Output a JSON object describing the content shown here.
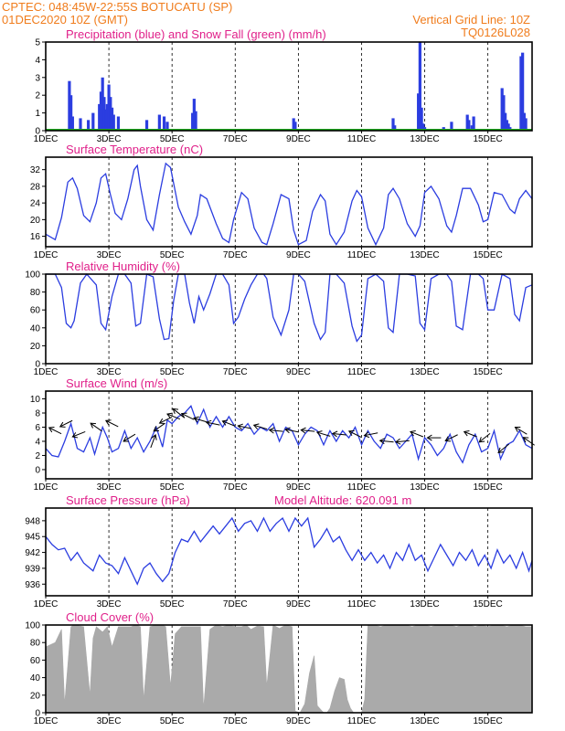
{
  "header": {
    "org_location": "CPTEC:  048:45W-22:55S  BOTUCATU (SP)",
    "run": "01DEC2020 10Z (GMT)",
    "grid_note": "Vertical Grid Line: 10Z",
    "code": "TQ0126L028"
  },
  "colors": {
    "header": "#f07c1c",
    "title": "#e0208a",
    "series": "#2b3de0",
    "precip": "#2b3de0",
    "snow": "#1fa81f",
    "cloud": "#aaaaaa",
    "arrow": "#000000"
  },
  "chart_data": [
    {
      "type": "bar",
      "title": "Precipitation (blue) and Snow Fall (green) (mm/h)",
      "x_tick_labels": [
        "1DEC",
        "3DEC",
        "5DEC",
        "7DEC",
        "9DEC",
        "11DEC",
        "13DEC",
        "15DEC"
      ],
      "xlim_days": [
        1,
        16.4
      ],
      "ylim": [
        0,
        5
      ],
      "y_ticks": [
        0,
        1,
        2,
        3,
        4,
        5
      ],
      "series": [
        {
          "key": "precip",
          "x_day": [
            1.75,
            1.8,
            1.85,
            2.1,
            2.35,
            2.5,
            2.7,
            2.75,
            2.8,
            2.85,
            2.9,
            2.95,
            3.0,
            3.05,
            3.1,
            3.15,
            3.3,
            4.2,
            4.6,
            4.75,
            4.85,
            5.65,
            5.7,
            5.75,
            8.85,
            8.9,
            12.0,
            12.05,
            12.8,
            12.85,
            12.9,
            12.95,
            13.0,
            13.6,
            13.85,
            14.35,
            14.4,
            14.5,
            14.55,
            15.45,
            15.5,
            15.55,
            15.6,
            15.65,
            15.7,
            16.05,
            16.1,
            16.15,
            16.2
          ],
          "values": [
            2.8,
            2.0,
            0.8,
            0.7,
            0.6,
            1.0,
            1.5,
            2.2,
            3.0,
            1.9,
            1.2,
            1.5,
            2.6,
            1.9,
            1.3,
            0.9,
            0.8,
            0.6,
            0.9,
            0.8,
            0.5,
            1.0,
            1.8,
            1.1,
            0.7,
            0.5,
            0.7,
            0.3,
            2.1,
            5.0,
            1.3,
            0.4,
            0.2,
            0.2,
            0.5,
            0.9,
            0.6,
            0.3,
            0.8,
            2.4,
            2.0,
            1.0,
            0.6,
            0.4,
            0.2,
            4.2,
            4.4,
            1.0,
            0.7
          ]
        },
        {
          "key": "snow",
          "values_all": 0
        }
      ]
    },
    {
      "type": "line",
      "title": "Surface Temperature (nC)",
      "x_tick_labels": [
        "1DEC",
        "3DEC",
        "5DEC",
        "7DEC",
        "9DEC",
        "11DEC",
        "13DEC",
        "15DEC"
      ],
      "xlim_days": [
        1,
        16.4
      ],
      "ylim": [
        13.5,
        35
      ],
      "y_ticks": [
        16,
        20,
        24,
        28,
        32
      ],
      "x_day": [
        1.0,
        1.3,
        1.5,
        1.7,
        1.85,
        2.0,
        2.2,
        2.4,
        2.6,
        2.75,
        2.9,
        3.05,
        3.2,
        3.4,
        3.6,
        3.8,
        3.9,
        4.0,
        4.2,
        4.4,
        4.6,
        4.8,
        4.95,
        5.2,
        5.4,
        5.6,
        5.8,
        5.9,
        6.1,
        6.4,
        6.6,
        6.8,
        6.95,
        7.2,
        7.4,
        7.6,
        7.85,
        8.0,
        8.2,
        8.45,
        8.7,
        8.85,
        9.0,
        9.25,
        9.45,
        9.7,
        9.85,
        10.0,
        10.2,
        10.45,
        10.7,
        10.85,
        11.0,
        11.2,
        11.45,
        11.7,
        11.85,
        12.0,
        12.2,
        12.45,
        12.7,
        12.85,
        13.0,
        13.2,
        13.45,
        13.7,
        13.85,
        14.0,
        14.2,
        14.45,
        14.7,
        14.85,
        15.0,
        15.2,
        15.45,
        15.7,
        15.85,
        16.0,
        16.2,
        16.4
      ],
      "values": [
        16.5,
        15.2,
        20.5,
        29.0,
        30.0,
        27.5,
        21.0,
        19.5,
        24.0,
        30.0,
        31.0,
        26.0,
        21.5,
        20.0,
        25.0,
        32.0,
        33.0,
        28.0,
        20.0,
        17.5,
        26.0,
        33.5,
        32.5,
        23.0,
        19.5,
        16.5,
        21.0,
        26.0,
        25.0,
        19.0,
        15.5,
        14.5,
        20.0,
        26.5,
        25.0,
        18.0,
        14.5,
        14.0,
        19.0,
        26.0,
        25.0,
        17.5,
        14.0,
        15.0,
        22.0,
        26.0,
        24.5,
        16.5,
        14.0,
        17.0,
        24.5,
        27.0,
        25.5,
        18.0,
        14.0,
        18.0,
        26.0,
        27.5,
        25.0,
        19.0,
        16.0,
        18.5,
        26.5,
        28.0,
        25.0,
        18.5,
        17.0,
        21.0,
        27.5,
        27.5,
        23.5,
        19.5,
        20.0,
        26.5,
        26.0,
        22.5,
        21.5,
        25.0,
        27.0,
        25.0
      ]
    },
    {
      "type": "line",
      "title": "Relative Humidity (%)",
      "x_tick_labels": [
        "1DEC",
        "3DEC",
        "5DEC",
        "7DEC",
        "9DEC",
        "11DEC",
        "13DEC",
        "15DEC"
      ],
      "xlim_days": [
        1,
        16.4
      ],
      "ylim": [
        0,
        100
      ],
      "y_ticks": [
        0,
        20,
        40,
        60,
        80,
        100
      ],
      "x_day": [
        1.0,
        1.3,
        1.5,
        1.65,
        1.8,
        1.9,
        2.1,
        2.3,
        2.6,
        2.75,
        2.9,
        3.1,
        3.3,
        3.5,
        3.7,
        3.85,
        4.0,
        4.2,
        4.4,
        4.6,
        4.75,
        4.9,
        5.05,
        5.2,
        5.4,
        5.55,
        5.7,
        5.85,
        6.0,
        6.2,
        6.4,
        6.6,
        6.8,
        6.95,
        7.1,
        7.3,
        7.5,
        7.7,
        7.9,
        8.0,
        8.2,
        8.45,
        8.7,
        8.85,
        9.0,
        9.2,
        9.5,
        9.7,
        9.85,
        10.0,
        10.2,
        10.45,
        10.7,
        10.85,
        11.0,
        11.2,
        11.45,
        11.7,
        11.85,
        12.0,
        12.2,
        12.45,
        12.7,
        12.85,
        13.0,
        13.2,
        13.45,
        13.7,
        13.85,
        14.0,
        14.2,
        14.45,
        14.7,
        14.85,
        15.0,
        15.2,
        15.45,
        15.7,
        15.85,
        16.0,
        16.2,
        16.4
      ],
      "values": [
        100,
        100,
        85,
        45,
        40,
        48,
        90,
        100,
        88,
        45,
        38,
        75,
        100,
        100,
        90,
        42,
        45,
        100,
        97,
        50,
        27,
        28,
        70,
        100,
        100,
        68,
        45,
        75,
        60,
        78,
        100,
        100,
        88,
        45,
        52,
        72,
        88,
        100,
        100,
        95,
        52,
        32,
        60,
        100,
        100,
        92,
        45,
        27,
        35,
        100,
        100,
        90,
        42,
        25,
        32,
        95,
        100,
        92,
        40,
        35,
        100,
        100,
        98,
        45,
        38,
        95,
        100,
        100,
        92,
        42,
        38,
        100,
        100,
        95,
        60,
        60,
        100,
        95,
        55,
        48,
        85,
        88
      ]
    },
    {
      "type": "line",
      "title": "Surface Wind (m/s)",
      "x_tick_labels": [
        "1DEC",
        "3DEC",
        "5DEC",
        "7DEC",
        "9DEC",
        "11DEC",
        "13DEC",
        "15DEC"
      ],
      "xlim_days": [
        1,
        16.4
      ],
      "ylim": [
        -1.3,
        11.1
      ],
      "y_ticks": [
        0,
        2,
        4,
        6,
        8,
        10
      ],
      "x_day": [
        1.0,
        1.2,
        1.4,
        1.6,
        1.8,
        2.0,
        2.2,
        2.4,
        2.55,
        2.8,
        2.95,
        3.1,
        3.3,
        3.5,
        3.7,
        3.9,
        4.1,
        4.3,
        4.5,
        4.7,
        4.85,
        5.0,
        5.2,
        5.4,
        5.6,
        5.8,
        6.0,
        6.2,
        6.4,
        6.6,
        6.8,
        7.0,
        7.2,
        7.4,
        7.6,
        7.8,
        8.0,
        8.2,
        8.4,
        8.6,
        8.8,
        9.0,
        9.2,
        9.4,
        9.6,
        9.8,
        10.0,
        10.2,
        10.4,
        10.6,
        10.8,
        11.0,
        11.2,
        11.4,
        11.6,
        11.8,
        12.0,
        12.2,
        12.4,
        12.6,
        12.8,
        13.0,
        13.2,
        13.4,
        13.6,
        13.8,
        14.0,
        14.2,
        14.4,
        14.6,
        14.8,
        15.0,
        15.2,
        15.4,
        15.6,
        15.8,
        16.0,
        16.2,
        16.4
      ],
      "values": [
        3.0,
        2.0,
        1.8,
        4.0,
        6.5,
        3.0,
        2.5,
        4.5,
        2.2,
        6.0,
        4.5,
        2.5,
        3.0,
        5.5,
        3.0,
        4.5,
        2.5,
        4.0,
        6.0,
        3.2,
        7.0,
        6.5,
        7.5,
        8.0,
        9.0,
        6.5,
        8.5,
        6.0,
        7.5,
        6.0,
        7.5,
        6.0,
        5.5,
        6.5,
        5.0,
        6.0,
        5.5,
        6.5,
        4.0,
        6.0,
        5.5,
        3.5,
        5.0,
        6.0,
        5.5,
        3.5,
        5.5,
        4.0,
        5.5,
        4.5,
        6.0,
        3.5,
        5.5,
        4.0,
        3.0,
        5.0,
        4.5,
        3.0,
        4.0,
        5.0,
        1.5,
        4.5,
        3.5,
        2.0,
        3.0,
        5.0,
        2.5,
        1.0,
        3.5,
        5.0,
        2.5,
        3.0,
        5.5,
        1.5,
        3.5,
        4.0,
        5.5,
        3.5,
        3.0
      ],
      "arrows": {
        "x_day": [
          1.3,
          1.65,
          2.05,
          2.6,
          3.1,
          3.65,
          4.4,
          4.6,
          4.8,
          5.05,
          5.2,
          5.5,
          5.9,
          6.3,
          6.8,
          7.3,
          7.8,
          8.3,
          8.8,
          9.3,
          9.8,
          10.3,
          10.8,
          11.3,
          11.8,
          12.3,
          12.75,
          13.3,
          13.85,
          14.45,
          14.9,
          15.5,
          16.05,
          16.3
        ],
        "speed": [
          5.5,
          6.5,
          5.0,
          6.0,
          6.5,
          4.5,
          4.0,
          6.0,
          7.0,
          7.5,
          8.0,
          7.5,
          7.0,
          6.5,
          6.5,
          6.0,
          6.0,
          5.5,
          5.5,
          5.5,
          5.0,
          5.0,
          5.0,
          5.0,
          4.0,
          4.0,
          5.0,
          4.5,
          4.5,
          5.0,
          4.5,
          3.0,
          5.5,
          4.0
        ],
        "dx": [
          -1,
          -1,
          -1,
          -1,
          -1,
          -1,
          0.3,
          -1,
          -1,
          -1,
          -1,
          -1,
          -1,
          -1,
          -1,
          -1,
          -1,
          -1,
          -1,
          -1,
          -1,
          -1,
          -1,
          -1,
          -1,
          -1,
          -1,
          -1,
          -1,
          -1,
          -1,
          -1,
          -1,
          -1
        ],
        "dy": [
          -0.5,
          0.5,
          0.4,
          -0.7,
          -0.5,
          0.6,
          -0.8,
          0.7,
          0.5,
          -0.4,
          -0.8,
          -0.5,
          -0.3,
          -0.2,
          -0.4,
          -0.2,
          -0.3,
          -0.1,
          -0.2,
          -0.1,
          -0.3,
          -0.1,
          -0.5,
          0.2,
          -0.1,
          0.1,
          -0.4,
          0,
          0.5,
          -0.4,
          0.8,
          0.8,
          -0.6,
          -0.7
        ]
      }
    },
    {
      "type": "line",
      "title": "Surface Pressure (hPa)",
      "note": "Model Altitude: 620.091  m",
      "x_tick_labels": [
        "1DEC",
        "3DEC",
        "5DEC",
        "7DEC",
        "9DEC",
        "11DEC",
        "13DEC",
        "15DEC"
      ],
      "xlim_days": [
        1,
        16.4
      ],
      "ylim": [
        933.8,
        950.4
      ],
      "y_ticks": [
        936,
        939,
        942,
        945,
        948
      ],
      "x_day": [
        1.0,
        1.2,
        1.4,
        1.6,
        1.8,
        2.0,
        2.2,
        2.5,
        2.7,
        2.9,
        3.1,
        3.3,
        3.5,
        3.7,
        3.9,
        4.1,
        4.3,
        4.5,
        4.7,
        4.9,
        5.1,
        5.3,
        5.5,
        5.7,
        5.9,
        6.1,
        6.3,
        6.5,
        6.7,
        6.9,
        7.1,
        7.3,
        7.5,
        7.7,
        7.9,
        8.1,
        8.3,
        8.5,
        8.7,
        8.9,
        9.1,
        9.3,
        9.5,
        9.7,
        9.9,
        10.1,
        10.3,
        10.5,
        10.7,
        10.9,
        11.1,
        11.3,
        11.5,
        11.7,
        11.9,
        12.1,
        12.3,
        12.5,
        12.7,
        12.9,
        13.1,
        13.3,
        13.5,
        13.7,
        13.9,
        14.1,
        14.3,
        14.5,
        14.7,
        14.9,
        15.1,
        15.3,
        15.5,
        15.7,
        15.9,
        16.1,
        16.3,
        16.4
      ],
      "values": [
        945.0,
        943.5,
        942.5,
        942.8,
        940.5,
        942.0,
        940.0,
        938.5,
        941.5,
        940.0,
        939.5,
        938.0,
        941.0,
        938.5,
        936.0,
        939.0,
        940.0,
        938.0,
        936.5,
        938.0,
        942.0,
        944.5,
        944.0,
        946.0,
        944.0,
        945.5,
        947.0,
        945.5,
        947.0,
        948.5,
        946.0,
        947.5,
        948.0,
        946.0,
        948.5,
        946.0,
        947.5,
        948.5,
        946.0,
        948.5,
        947.0,
        948.5,
        943.0,
        944.5,
        946.5,
        944.0,
        945.0,
        942.5,
        940.5,
        942.5,
        940.5,
        942.0,
        940.0,
        941.5,
        939.0,
        942.0,
        940.5,
        943.5,
        940.5,
        941.5,
        938.5,
        941.0,
        943.5,
        941.5,
        939.5,
        942.0,
        940.5,
        942.5,
        939.5,
        941.5,
        939.0,
        942.5,
        940.0,
        941.5,
        939.0,
        942.0,
        938.5,
        940.5
      ]
    },
    {
      "type": "area",
      "title": "Cloud Cover (%)",
      "x_tick_labels": [
        "1DEC",
        "3DEC",
        "5DEC",
        "7DEC",
        "9DEC",
        "11DEC",
        "13DEC",
        "15DEC"
      ],
      "xlim_days": [
        1,
        16.4
      ],
      "ylim": [
        0,
        100
      ],
      "y_ticks": [
        0,
        20,
        40,
        60,
        80,
        100
      ],
      "x_day": [
        1.0,
        1.3,
        1.5,
        1.6,
        1.8,
        1.9,
        2.2,
        2.4,
        2.5,
        2.6,
        2.8,
        2.95,
        3.1,
        3.3,
        3.5,
        3.7,
        3.85,
        4.0,
        4.1,
        4.3,
        4.5,
        4.7,
        4.8,
        4.95,
        5.1,
        5.3,
        5.5,
        5.7,
        5.9,
        6.0,
        6.2,
        6.4,
        6.6,
        6.8,
        7.0,
        7.2,
        7.35,
        7.5,
        7.7,
        7.9,
        8.0,
        8.2,
        8.4,
        8.6,
        8.8,
        8.9,
        9.05,
        9.2,
        9.35,
        9.5,
        9.6,
        9.7,
        9.8,
        9.9,
        10.0,
        10.15,
        10.3,
        10.45,
        10.55,
        10.65,
        10.75,
        10.85,
        11.0,
        11.1,
        11.2,
        11.4,
        11.6,
        11.8,
        12.0,
        12.2,
        12.4,
        12.6,
        12.8,
        13.0,
        13.2,
        13.4,
        13.6,
        13.8,
        14.0,
        14.2,
        14.4,
        14.6,
        14.8,
        15.0,
        15.2,
        15.4,
        15.6,
        15.8,
        16.0,
        16.2,
        16.4
      ],
      "values": [
        75,
        80,
        95,
        10,
        98,
        100,
        98,
        20,
        85,
        98,
        92,
        98,
        75,
        98,
        98,
        98,
        100,
        98,
        15,
        98,
        100,
        100,
        98,
        30,
        90,
        98,
        98,
        98,
        98,
        5,
        95,
        100,
        98,
        100,
        98,
        98,
        100,
        95,
        99,
        98,
        30,
        100,
        96,
        100,
        98,
        2,
        0,
        10,
        45,
        65,
        8,
        4,
        0,
        0,
        5,
        25,
        40,
        38,
        15,
        5,
        0,
        0,
        0,
        15,
        100,
        100,
        98,
        100,
        100,
        100,
        100,
        98,
        100,
        100,
        98,
        100,
        100,
        100,
        98,
        100,
        100,
        98,
        100,
        98,
        100,
        100,
        98,
        100,
        100,
        98,
        98
      ]
    }
  ]
}
